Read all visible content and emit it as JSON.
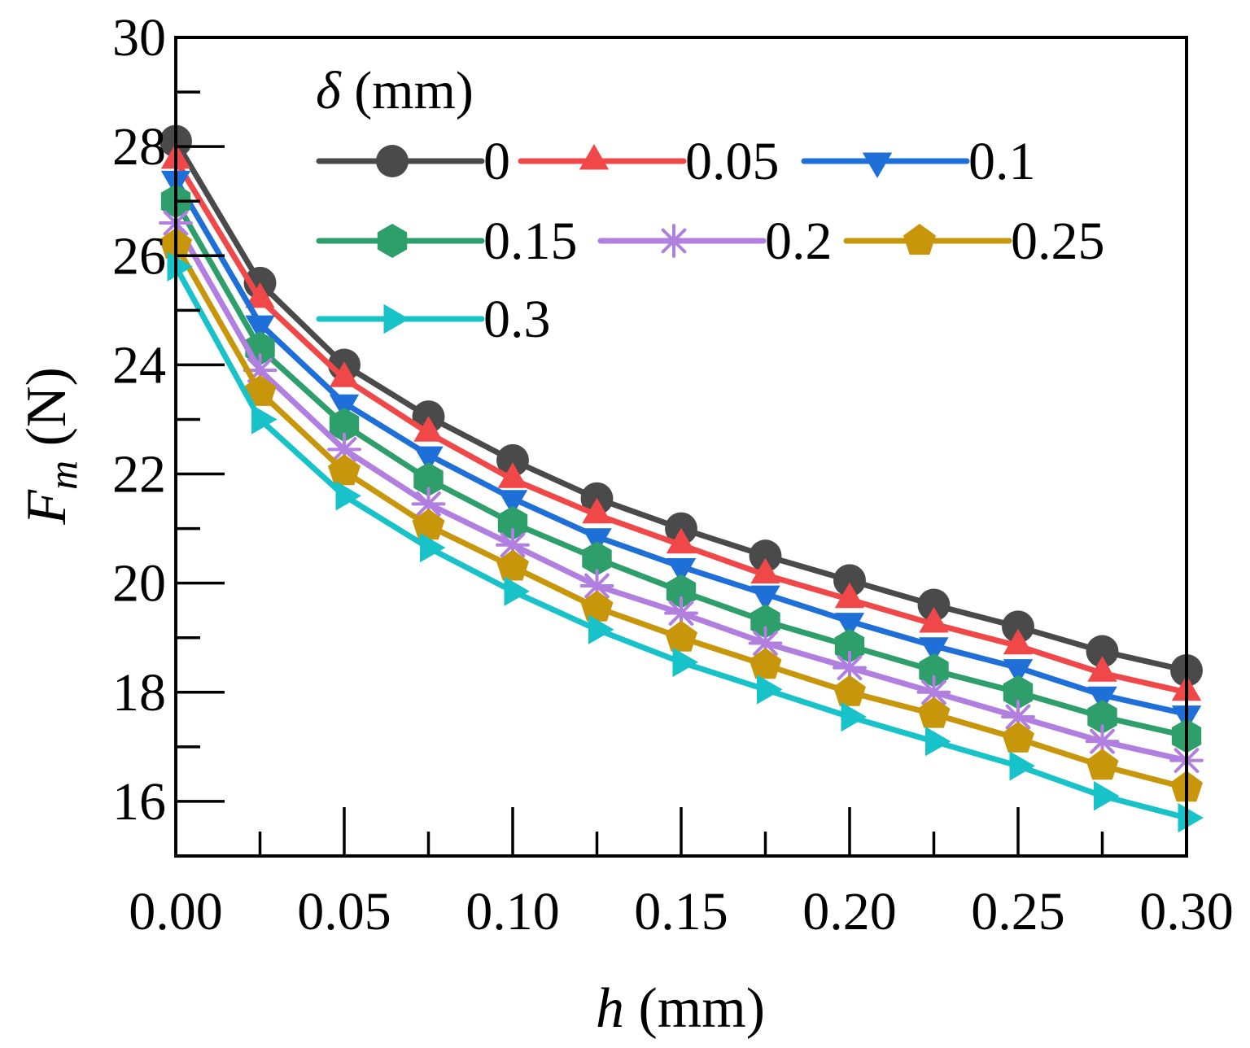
{
  "chart_data": {
    "type": "line",
    "xlabel_var": "h",
    "xlabel_unit": " (mm)",
    "ylabel_var": "F",
    "ylabel_sub": "m",
    "ylabel_unit": " (N)",
    "xlim": [
      0,
      0.3
    ],
    "ylim": [
      15,
      30
    ],
    "x_tick_labels": [
      "0.00",
      "0.05",
      "0.10",
      "0.15",
      "0.20",
      "0.25",
      "0.30"
    ],
    "x_ticks": [
      0,
      0.05,
      0.1,
      0.15,
      0.2,
      0.25,
      0.3
    ],
    "y_tick_labels": [
      "16",
      "18",
      "20",
      "22",
      "24",
      "26",
      "28",
      "30"
    ],
    "y_ticks": [
      16,
      18,
      20,
      22,
      24,
      26,
      28,
      30
    ],
    "legend_title_var": "δ",
    "legend_title_unit": " (mm)",
    "legend_position": "top-right inside",
    "x": [
      0,
      0.025,
      0.05,
      0.075,
      0.1,
      0.125,
      0.15,
      0.175,
      0.2,
      0.225,
      0.25,
      0.275,
      0.3
    ],
    "series": [
      {
        "name": "0",
        "color": "#4a4a4a",
        "marker": "circle",
        "values": [
          28.1,
          25.5,
          24.0,
          23.05,
          22.25,
          21.55,
          21.0,
          20.5,
          20.05,
          19.6,
          19.2,
          18.75,
          18.4
        ]
      },
      {
        "name": "0.05",
        "color": "#f04848",
        "marker": "triangle-up",
        "values": [
          27.75,
          25.2,
          23.75,
          22.75,
          21.9,
          21.25,
          20.7,
          20.15,
          19.7,
          19.25,
          18.85,
          18.35,
          18.0
        ]
      },
      {
        "name": "0.1",
        "color": "#1f6fd8",
        "marker": "triangle-down",
        "values": [
          27.4,
          24.75,
          23.3,
          22.35,
          21.55,
          20.85,
          20.3,
          19.8,
          19.3,
          18.85,
          18.45,
          17.95,
          17.6
        ]
      },
      {
        "name": "0.15",
        "color": "#2e9e6a",
        "marker": "hexagon",
        "values": [
          27.0,
          24.3,
          22.9,
          21.9,
          21.1,
          20.45,
          19.85,
          19.3,
          18.85,
          18.4,
          18.0,
          17.55,
          17.2
        ]
      },
      {
        "name": "0.2",
        "color": "#b07fe0",
        "marker": "asterisk",
        "values": [
          26.6,
          23.9,
          22.45,
          21.45,
          20.7,
          19.95,
          19.45,
          18.9,
          18.45,
          18.0,
          17.55,
          17.1,
          16.75
        ]
      },
      {
        "name": "0.25",
        "color": "#c8960a",
        "marker": "pentagon",
        "values": [
          26.2,
          23.5,
          22.05,
          21.05,
          20.3,
          19.55,
          19.0,
          18.5,
          18.0,
          17.6,
          17.15,
          16.65,
          16.25
        ]
      },
      {
        "name": "0.3",
        "color": "#17c2c8",
        "marker": "triangle-right",
        "values": [
          25.8,
          23.0,
          21.6,
          20.65,
          19.85,
          19.15,
          18.55,
          18.05,
          17.55,
          17.1,
          16.65,
          16.1,
          15.7
        ]
      }
    ]
  }
}
